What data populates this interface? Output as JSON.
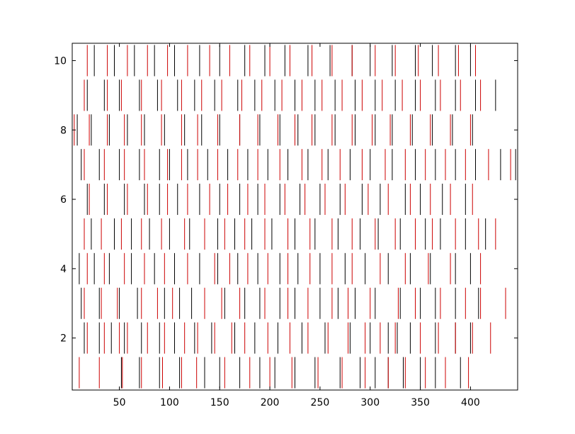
{
  "chart_data": {
    "type": "eventplot",
    "title": "",
    "xlabel": "",
    "ylabel": "",
    "xlim": [
      3,
      447
    ],
    "ylim": [
      0.5,
      10.5
    ],
    "xticks": [
      50,
      100,
      150,
      200,
      250,
      300,
      350,
      400
    ],
    "yticks": [
      2,
      4,
      6,
      8,
      10
    ],
    "xtick_labels": [
      "50",
      "100",
      "150",
      "200",
      "250",
      "300",
      "350",
      "400"
    ],
    "ytick_labels": [
      "2",
      "4",
      "6",
      "8",
      "10"
    ],
    "grid": false,
    "legend": "none",
    "line_length": 0.9,
    "colors": {
      "black": "#000000",
      "red": "#cc0000"
    },
    "series": [
      {
        "row": 1,
        "black": [
          52,
          70,
          90,
          110,
          135,
          150,
          170,
          190,
          205,
          225,
          245,
          270,
          290,
          305,
          318,
          333,
          350,
          365,
          390
        ],
        "red": [
          10,
          30,
          53,
          72,
          93,
          112,
          127,
          155,
          180,
          200,
          222,
          248,
          272,
          295,
          318,
          335,
          355,
          375,
          398
        ]
      },
      {
        "row": 2,
        "black": [
          15,
          30,
          42,
          55,
          72,
          90,
          105,
          125,
          142,
          165,
          185,
          208,
          232,
          255,
          280,
          300,
          318,
          327,
          340,
          365,
          385,
          400
        ],
        "red": [
          18,
          35,
          50,
          58,
          78,
          95,
          115,
          128,
          145,
          162,
          175,
          198,
          220,
          238,
          258,
          278,
          295,
          310,
          325,
          350,
          368,
          385,
          402,
          420
        ]
      },
      {
        "row": 3,
        "black": [
          12,
          30,
          50,
          68,
          95,
          110,
          122,
          155,
          175,
          190,
          210,
          225,
          250,
          268,
          285,
          305,
          330,
          350,
          365,
          385,
          408
        ],
        "red": [
          15,
          32,
          48,
          72,
          88,
          103,
          135,
          152,
          170,
          195,
          218,
          238,
          262,
          278,
          300,
          328,
          345,
          370,
          395,
          410,
          435
        ]
      },
      {
        "row": 4,
        "black": [
          10,
          25,
          40,
          62,
          85,
          105,
          130,
          148,
          168,
          188,
          210,
          228,
          250,
          275,
          295,
          318,
          340,
          360,
          385,
          400
        ],
        "red": [
          18,
          35,
          55,
          75,
          95,
          118,
          145,
          160,
          178,
          198,
          218,
          240,
          262,
          282,
          310,
          335,
          358,
          380,
          410
        ]
      },
      {
        "row": 5,
        "black": [
          22,
          45,
          62,
          80,
          100,
          120,
          148,
          165,
          182,
          202,
          225,
          245,
          268,
          290,
          308,
          330,
          355,
          370,
          395,
          415
        ],
        "red": [
          15,
          32,
          52,
          72,
          92,
          115,
          135,
          155,
          175,
          195,
          218,
          240,
          262,
          282,
          305,
          325,
          345,
          362,
          385,
          408,
          425
        ]
      },
      {
        "row": 6,
        "black": [
          18,
          35,
          55,
          75,
          90,
          108,
          130,
          150,
          170,
          188,
          210,
          230,
          250,
          270,
          292,
          310,
          335,
          350,
          372,
          395
        ],
        "red": [
          20,
          38,
          58,
          78,
          98,
          118,
          140,
          158,
          178,
          195,
          215,
          235,
          255,
          275,
          298,
          318,
          340,
          360,
          380,
          402
        ]
      },
      {
        "row": 7,
        "black": [
          12,
          30,
          50,
          70,
          90,
          100,
          118,
          138,
          158,
          178,
          198,
          218,
          238,
          258,
          280,
          300,
          322,
          345,
          365,
          385,
          405,
          430,
          445
        ],
        "red": [
          15,
          35,
          55,
          75,
          98,
          112,
          128,
          148,
          168,
          188,
          210,
          232,
          252,
          270,
          292,
          315,
          335,
          355,
          375,
          395,
          418,
          440
        ]
      },
      {
        "row": 8,
        "black": [
          8,
          22,
          40,
          58,
          75,
          95,
          115,
          132,
          150,
          170,
          190,
          210,
          228,
          245,
          265,
          285,
          305,
          322,
          342,
          362,
          382,
          402
        ],
        "red": [
          5,
          20,
          38,
          55,
          72,
          92,
          112,
          128,
          148,
          170,
          188,
          208,
          225,
          242,
          262,
          282,
          302,
          320,
          340,
          360,
          380,
          400
        ]
      },
      {
        "row": 9,
        "black": [
          18,
          35,
          50,
          70,
          88,
          108,
          125,
          145,
          168,
          185,
          205,
          225,
          245,
          265,
          285,
          305,
          325,
          345,
          365,
          385,
          405,
          425
        ],
        "red": [
          15,
          38,
          52,
          72,
          92,
          112,
          132,
          152,
          172,
          192,
          212,
          232,
          252,
          272,
          292,
          312,
          332,
          350,
          370,
          390,
          410
        ]
      },
      {
        "row": 10,
        "black": [
          25,
          45,
          65,
          85,
          105,
          130,
          150,
          175,
          195,
          215,
          238,
          260,
          282,
          300,
          322,
          345,
          362,
          385,
          400
        ],
        "red": [
          18,
          38,
          58,
          78,
          98,
          118,
          140,
          160,
          180,
          200,
          220,
          242,
          262,
          282,
          305,
          325,
          348,
          368,
          388,
          405
        ]
      }
    ]
  }
}
